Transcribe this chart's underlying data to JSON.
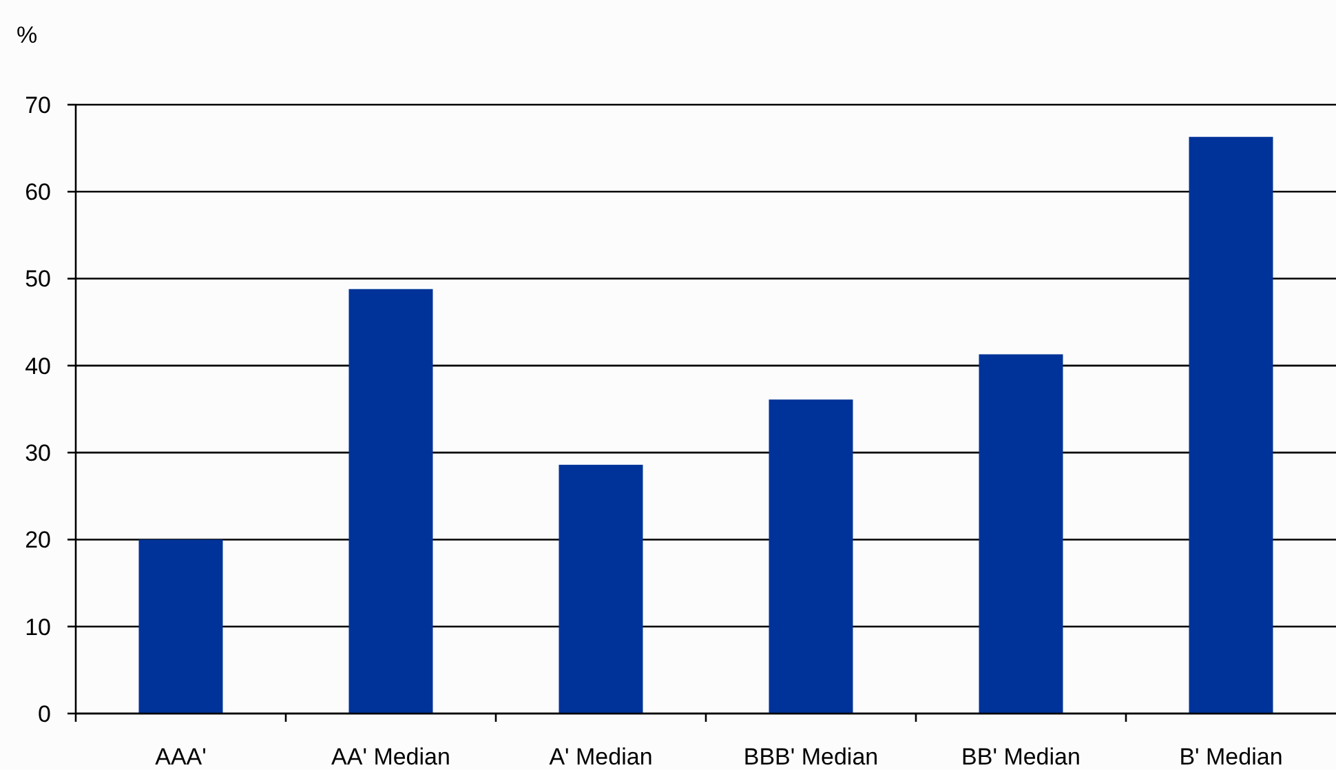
{
  "chart_data": {
    "type": "bar",
    "ylabel": "%",
    "categories": [
      "AAA'",
      "AA' Median",
      "A' Median",
      "BBB' Median",
      "BB' Median",
      "B' Median"
    ],
    "values": [
      20,
      48.8,
      28.6,
      36.1,
      41.3,
      66.3
    ],
    "color": "#003399",
    "ylim": [
      0,
      70
    ],
    "yticks": [
      0,
      10,
      20,
      30,
      40,
      50,
      60,
      70
    ],
    "grid": "y"
  }
}
